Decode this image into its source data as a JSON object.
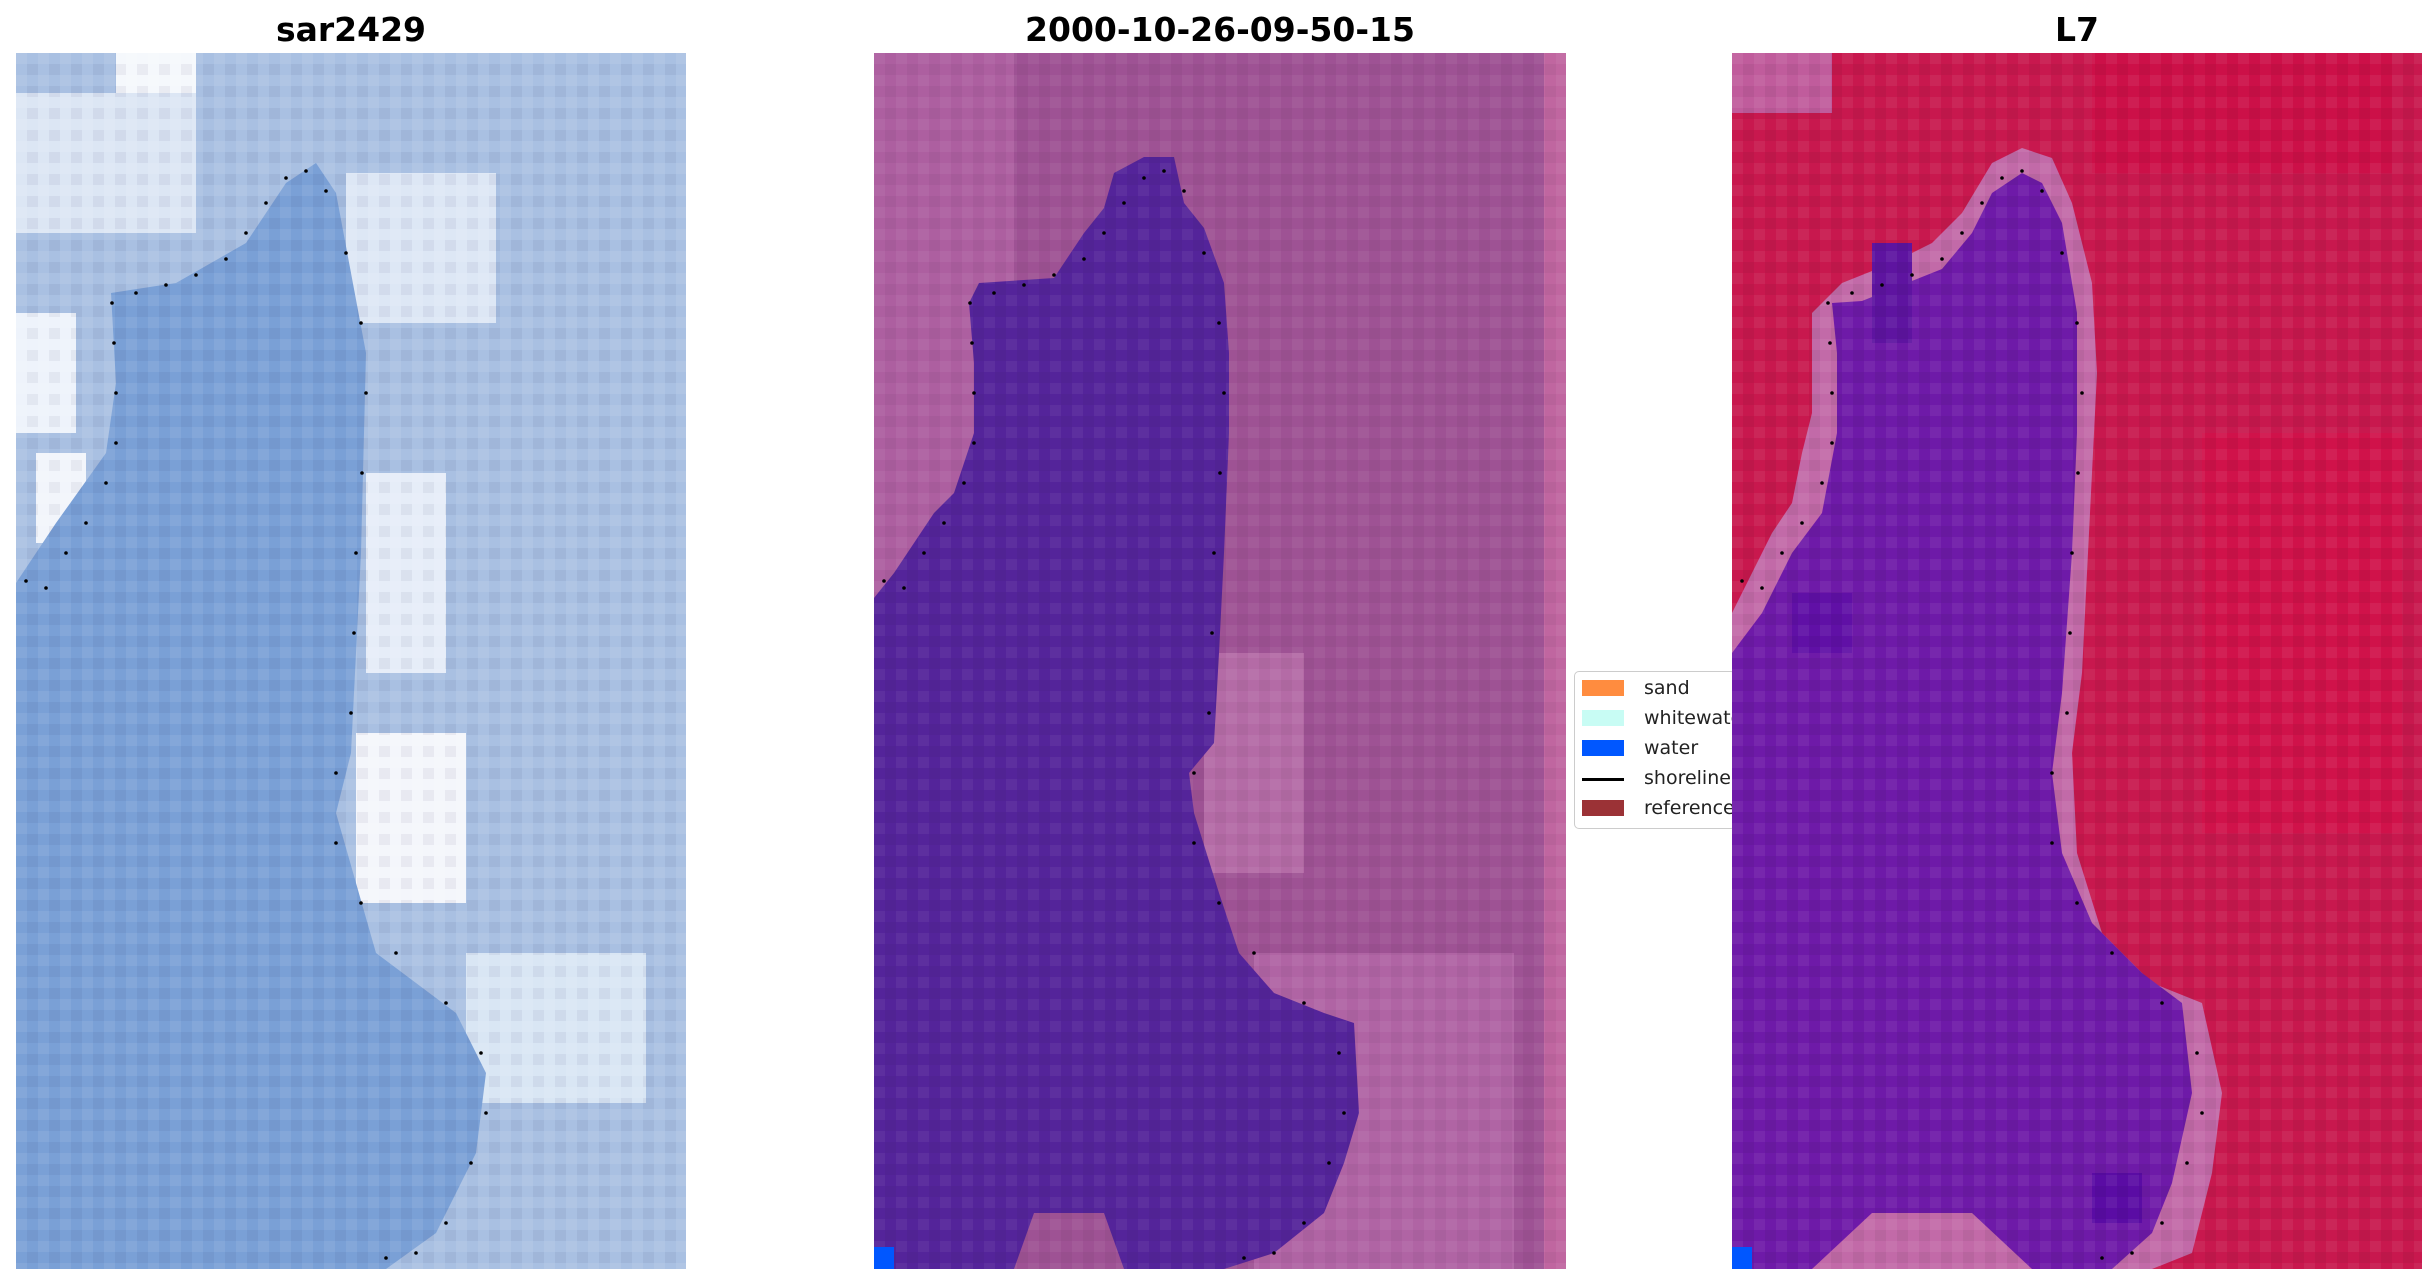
{
  "panels": [
    {
      "title": "sar2429",
      "image": "true-color-rgb-image"
    },
    {
      "title": "2000-10-26-09-50-15",
      "image": "classified-image"
    },
    {
      "title": "L7",
      "image": "index-image"
    }
  ],
  "legend": {
    "items": [
      {
        "label": "sand",
        "color": "#ff8c3f",
        "kind": "patch"
      },
      {
        "label": "whitewater",
        "color": "#c8fcf4",
        "kind": "patch"
      },
      {
        "label": "water",
        "color": "#0057ff",
        "kind": "patch"
      },
      {
        "label": "shoreline",
        "color": "#000000",
        "kind": "line"
      },
      {
        "label": "reference",
        "color": "#9b3236",
        "kind": "patch"
      }
    ]
  },
  "colors": {
    "panel1_base": "#9db6dc",
    "panel1_water": "#7aa0d6",
    "panel1_white": "#e9f0fa",
    "panel2_land": "#9e5294",
    "panel2_land_light": "#b46ba6",
    "panel2_water": "#54249a",
    "panel2_edge_strip": "#c066a0",
    "panel3_land": "#c8184e",
    "panel3_halo": "#c26aa8",
    "panel3_water": "#6e1aa8",
    "water_pixel": "#0057ff",
    "shoreline_dots": "#000000"
  }
}
